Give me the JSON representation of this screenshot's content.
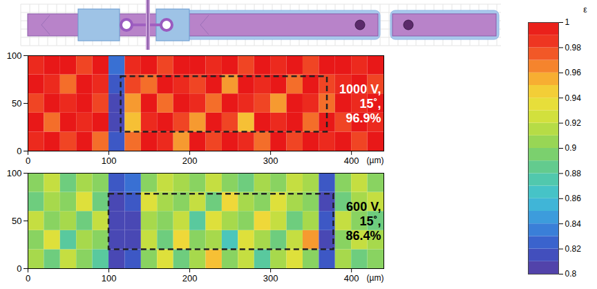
{
  "chart_data": [
    {
      "type": "heatmap",
      "x": [
        10,
        30,
        50,
        70,
        90,
        110,
        130,
        150,
        170,
        190,
        210,
        230,
        250,
        270,
        290,
        310,
        330,
        350,
        370,
        390,
        410,
        430
      ],
      "y": [
        10,
        30,
        50,
        70,
        90
      ],
      "values": [
        [
          0.99,
          1,
          0.98,
          1,
          0.97,
          0.82,
          0.97,
          1,
          0.99,
          0.96,
          1,
          0.98,
          1,
          0.99,
          0.97,
          1,
          0.98,
          1,
          0.99,
          1,
          0.98,
          1
        ],
        [
          1,
          0.97,
          1,
          0.99,
          1,
          0.81,
          0.95,
          0.99,
          1,
          0.98,
          0.96,
          1,
          0.98,
          0.95,
          1,
          0.99,
          1,
          0.97,
          1,
          0.98,
          1,
          0.99
        ],
        [
          0.98,
          1,
          0.99,
          1,
          0.98,
          0.81,
          0.96,
          1,
          0.97,
          1,
          0.99,
          0.97,
          1,
          0.99,
          0.98,
          0.96,
          1,
          0.99,
          0.97,
          1,
          0.99,
          1
        ],
        [
          1,
          0.99,
          0.97,
          1,
          0.99,
          0.82,
          0.98,
          0.97,
          1,
          0.99,
          0.98,
          1,
          0.96,
          1,
          0.99,
          1,
          0.97,
          1,
          0.98,
          0.99,
          1,
          0.98
        ],
        [
          0.99,
          1,
          1,
          0.98,
          1,
          0.83,
          0.99,
          1,
          0.98,
          1,
          1,
          0.99,
          1,
          0.98,
          1,
          0.99,
          1,
          0.98,
          1,
          1,
          0.99,
          1
        ]
      ],
      "xlim": [
        0,
        440
      ],
      "xticks": [
        0,
        100,
        200,
        300,
        400
      ],
      "xlabel": "(µm)",
      "ylim": [
        0,
        100
      ],
      "yticks": [
        0,
        50,
        100
      ],
      "annotation": {
        "lines": [
          "1000 V,",
          "15˚,",
          "96.9%"
        ],
        "color": "#ffffff"
      },
      "box": {
        "x": [
          115,
          370
        ],
        "y": [
          20,
          78
        ]
      }
    },
    {
      "type": "heatmap",
      "x": [
        10,
        30,
        50,
        70,
        90,
        110,
        130,
        150,
        170,
        190,
        210,
        230,
        250,
        270,
        290,
        310,
        330,
        350,
        370,
        390,
        410,
        430
      ],
      "y": [
        10,
        30,
        50,
        70,
        90
      ],
      "values": [
        [
          0.91,
          0.89,
          0.92,
          0.9,
          0.88,
          0.81,
          0.82,
          0.9,
          0.93,
          0.89,
          0.91,
          0.95,
          0.9,
          0.92,
          0.88,
          0.91,
          0.93,
          0.9,
          0.82,
          0.91,
          0.89,
          0.9
        ],
        [
          0.9,
          0.93,
          0.88,
          0.91,
          0.9,
          0.81,
          0.81,
          0.92,
          0.89,
          0.94,
          0.9,
          0.91,
          0.87,
          0.93,
          0.91,
          0.89,
          0.92,
          0.96,
          0.81,
          0.9,
          0.92,
          0.91
        ],
        [
          0.92,
          0.9,
          0.91,
          0.89,
          0.92,
          0.81,
          0.81,
          0.91,
          0.9,
          0.92,
          0.88,
          0.93,
          0.91,
          0.9,
          0.94,
          0.92,
          0.89,
          0.91,
          0.82,
          0.92,
          0.9,
          0.89
        ],
        [
          0.89,
          0.91,
          0.9,
          0.93,
          0.89,
          0.81,
          0.82,
          0.93,
          0.91,
          0.9,
          0.92,
          0.89,
          0.94,
          0.91,
          0.9,
          0.93,
          0.91,
          0.9,
          0.81,
          0.89,
          0.91,
          0.92
        ],
        [
          0.9,
          0.92,
          0.89,
          0.91,
          0.9,
          0.82,
          0.83,
          0.9,
          0.92,
          0.91,
          0.9,
          0.92,
          0.9,
          0.89,
          0.91,
          0.9,
          0.92,
          0.91,
          0.82,
          0.9,
          0.92,
          0.9
        ]
      ],
      "xlim": [
        0,
        440
      ],
      "xticks": [
        0,
        100,
        200,
        300,
        400
      ],
      "xlabel": "(µm)",
      "ylim": [
        0,
        100
      ],
      "yticks": [
        0,
        50,
        100
      ],
      "annotation": {
        "lines": [
          "600 V,",
          "15˚,",
          "86.4%"
        ],
        "color": "#000000"
      },
      "box": {
        "x": [
          100,
          378
        ],
        "y": [
          20,
          78
        ]
      }
    }
  ],
  "colorbar": {
    "label": "ε",
    "range": [
      0.8,
      1
    ],
    "ticks": [
      1,
      0.98,
      0.96,
      0.94,
      0.92,
      0.9,
      0.88,
      0.86,
      0.84,
      0.82,
      0.8
    ]
  }
}
